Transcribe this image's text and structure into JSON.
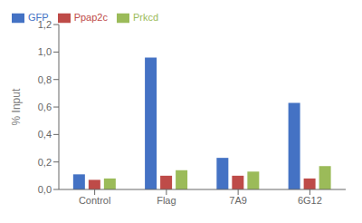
{
  "chart_data": {
    "type": "bar",
    "categories": [
      "Control",
      "Flag",
      "7A9",
      "6G12"
    ],
    "series": [
      {
        "name": "GFP",
        "color": "#4472C4",
        "values": [
          0.11,
          0.96,
          0.23,
          0.63
        ]
      },
      {
        "name": "Ppap2c",
        "color": "#BE4B48",
        "values": [
          0.07,
          0.1,
          0.1,
          0.08
        ]
      },
      {
        "name": "Prkcd",
        "color": "#9BBB59",
        "values": [
          0.08,
          0.14,
          0.13,
          0.17
        ]
      }
    ],
    "ylabel": "% Input",
    "ylim": [
      0,
      1.2
    ],
    "yticks": [
      {
        "value": 0.0,
        "label": "0,0"
      },
      {
        "value": 0.2,
        "label": "0,2"
      },
      {
        "value": 0.4,
        "label": "0,4"
      },
      {
        "value": 0.6,
        "label": "0,6"
      },
      {
        "value": 0.8,
        "label": "0,8"
      },
      {
        "value": 1.0,
        "label": "1,0"
      },
      {
        "value": 1.2,
        "label": "1,2"
      }
    ],
    "grid": false,
    "legend": "upper left"
  }
}
